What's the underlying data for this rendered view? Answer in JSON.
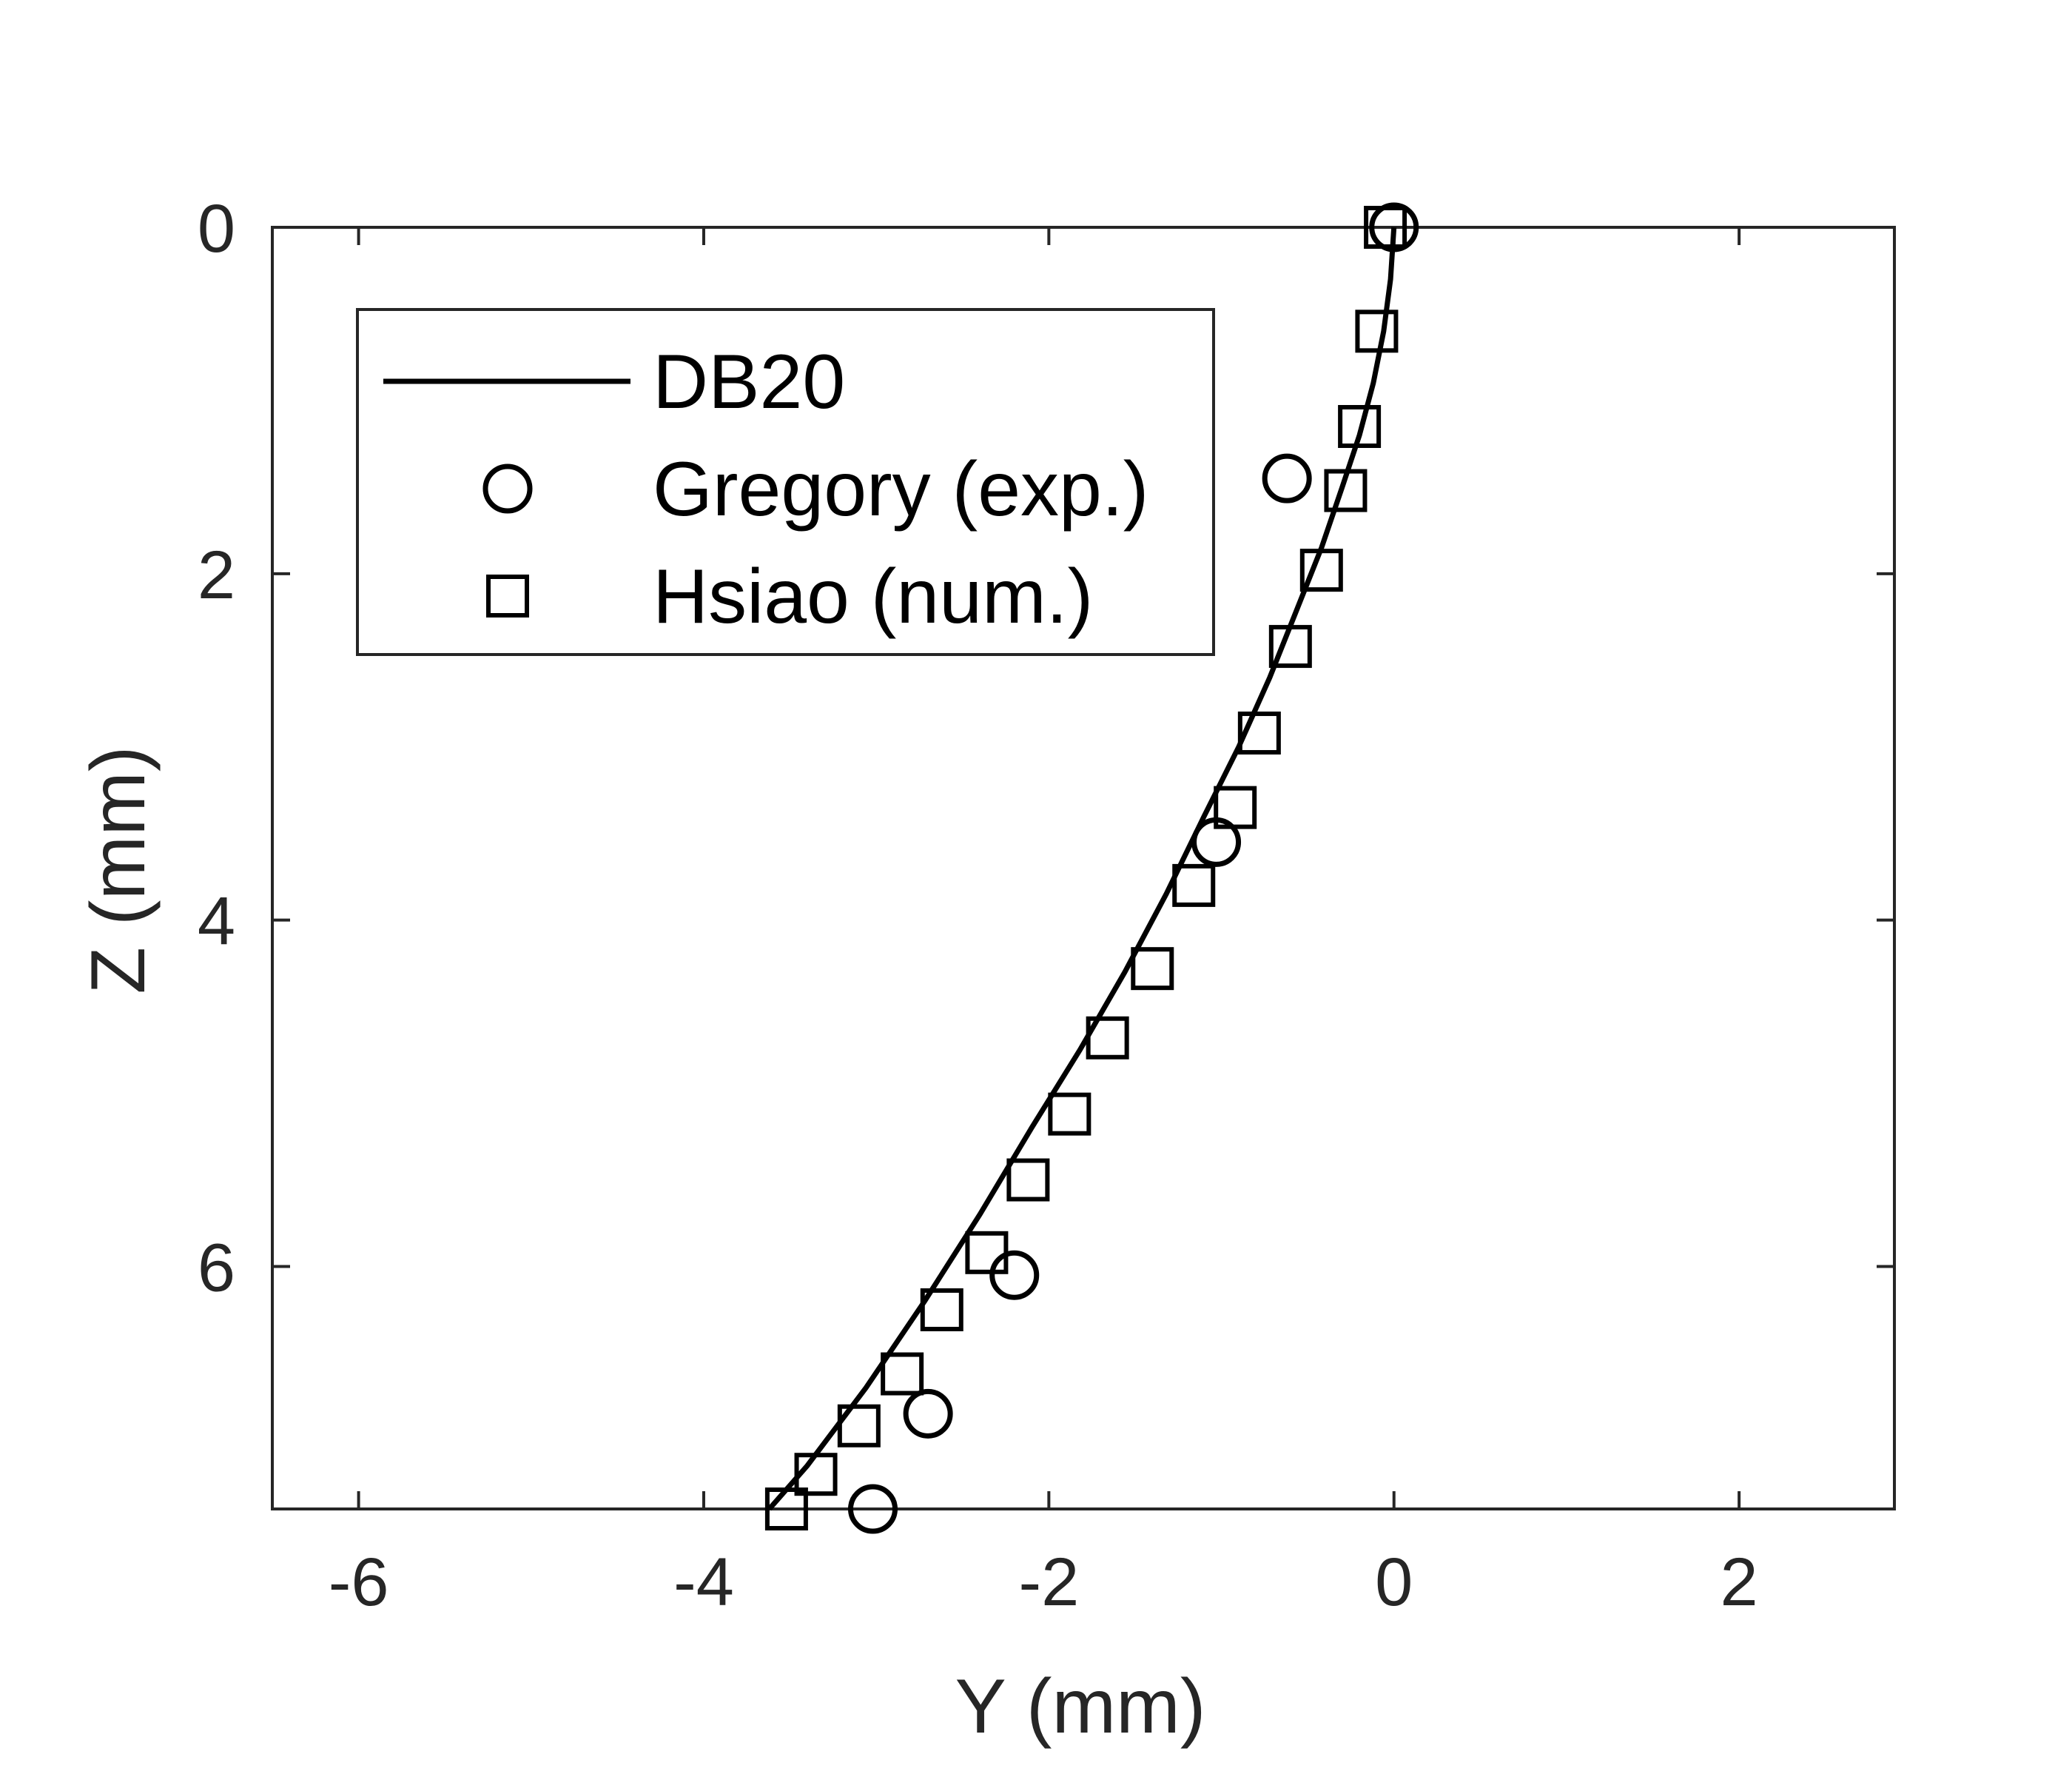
{
  "chart_data": {
    "type": "scatter",
    "xlabel": "Y (mm)",
    "ylabel": "Z (mm)",
    "xlim": [
      -6.5,
      2.9
    ],
    "ylim": [
      7.4,
      0
    ],
    "y_axis_reversed": true,
    "x_ticks": [
      "-6",
      "-4",
      "-2",
      "0",
      "2"
    ],
    "x_tick_values": [
      -6,
      -4,
      -2,
      0,
      2
    ],
    "y_ticks": [
      "0",
      "2",
      "4",
      "6"
    ],
    "y_tick_values": [
      0,
      2,
      4,
      6
    ],
    "grid": false,
    "legend_placement": "top-left",
    "series": [
      {
        "name": "DB20",
        "style": "line",
        "color": "#000000",
        "x": [
          0.0,
          -0.02,
          -0.06,
          -0.12,
          -0.2,
          -0.3,
          -0.42,
          -0.56,
          -0.72,
          -0.9,
          -1.1,
          -1.32,
          -1.56,
          -1.82,
          -2.1,
          -2.4,
          -2.72,
          -3.06,
          -3.4,
          -3.62
        ],
        "y": [
          0.0,
          0.3,
          0.6,
          0.9,
          1.2,
          1.5,
          1.85,
          2.2,
          2.6,
          3.0,
          3.4,
          3.85,
          4.3,
          4.75,
          5.2,
          5.7,
          6.2,
          6.7,
          7.15,
          7.4
        ]
      },
      {
        "name": "Gregory (exp.)",
        "style": "circle",
        "color": "#000000",
        "x": [
          0.0,
          -0.62,
          -1.03,
          -2.2,
          -2.7,
          -3.02
        ],
        "y": [
          0.0,
          1.45,
          3.55,
          6.05,
          6.85,
          7.4
        ]
      },
      {
        "name": "Hsiao (num.)",
        "style": "square",
        "color": "#000000",
        "x": [
          -0.05,
          -0.1,
          -0.2,
          -0.28,
          -0.42,
          -0.6,
          -0.78,
          -0.92,
          -1.16,
          -1.4,
          -1.66,
          -1.88,
          -2.12,
          -2.36,
          -2.62,
          -2.85,
          -3.1,
          -3.35,
          -3.52
        ],
        "y": [
          0.0,
          0.6,
          1.15,
          1.52,
          1.98,
          2.42,
          2.92,
          3.35,
          3.8,
          4.28,
          4.68,
          5.12,
          5.5,
          5.92,
          6.25,
          6.62,
          6.92,
          7.2,
          7.4
        ]
      }
    ]
  }
}
